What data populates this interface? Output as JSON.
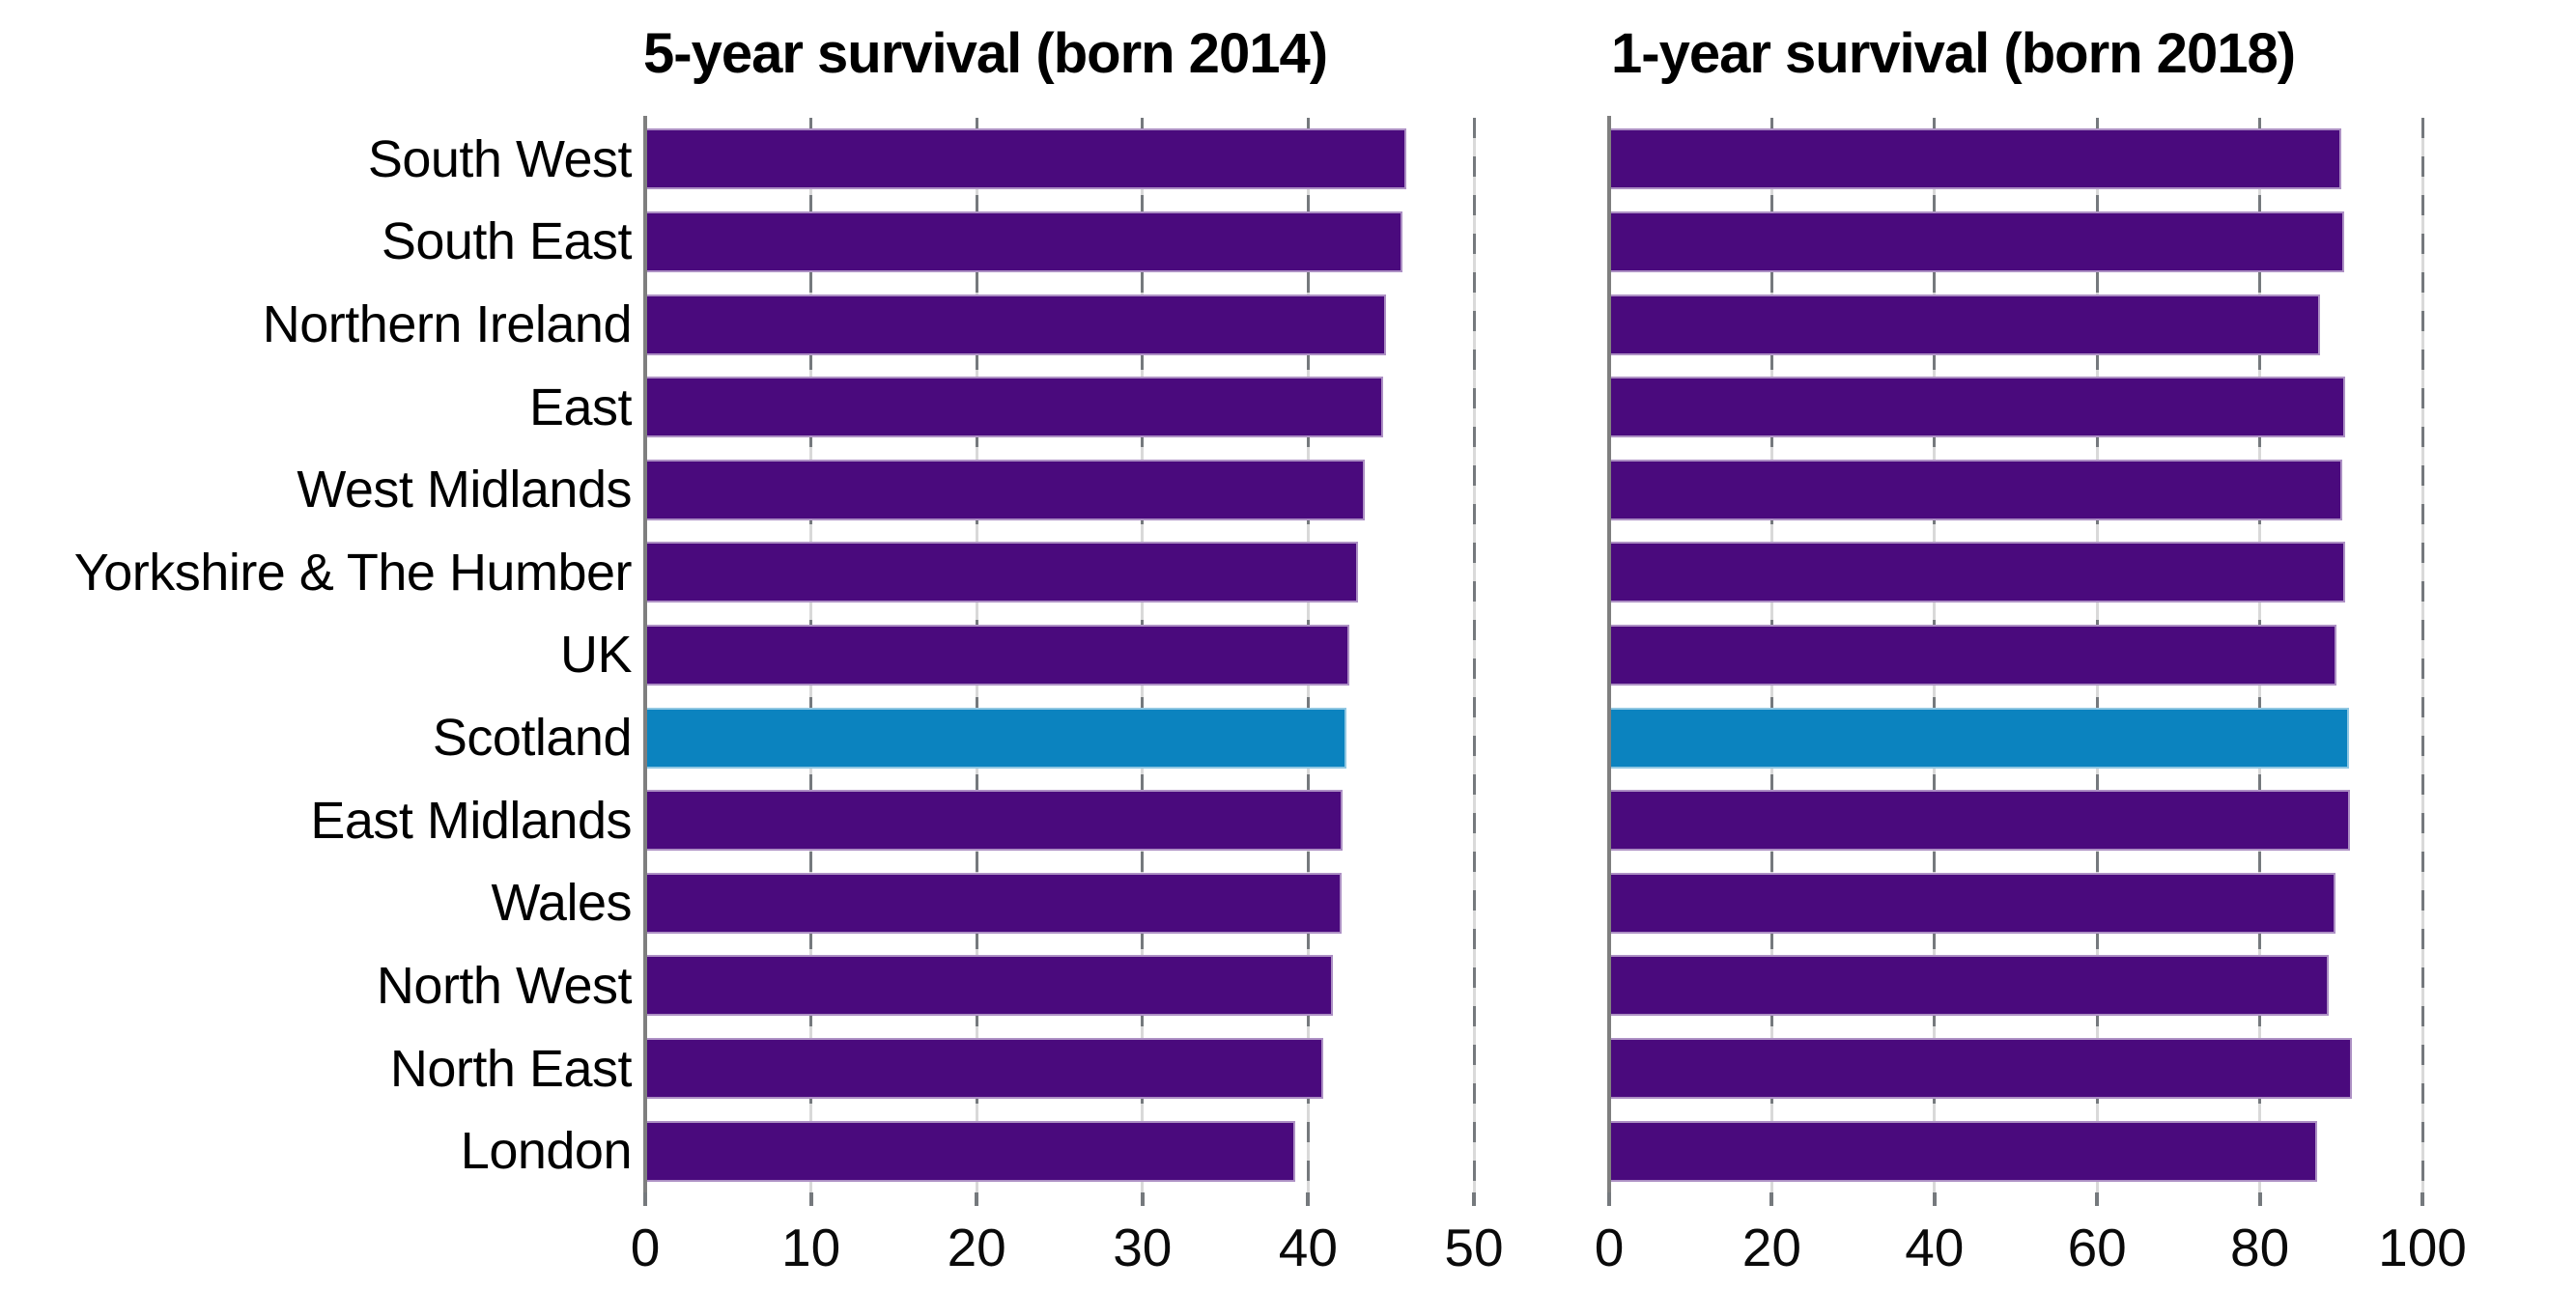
{
  "chart_data": {
    "type": "bar",
    "orientation": "horizontal",
    "categories": [
      "South West",
      "South East",
      "Northern Ireland",
      "East",
      "West Midlands",
      "Yorkshire & The Humber",
      "UK",
      "Scotland",
      "East Midlands",
      "Wales",
      "North West",
      "North East",
      "London"
    ],
    "highlight_category": "Scotland",
    "charts": [
      {
        "title": "5-year survival (born 2014)",
        "xlim": [
          0,
          50
        ],
        "xticks": [
          0,
          10,
          20,
          30,
          40,
          50
        ],
        "values": [
          45.9,
          45.7,
          44.7,
          44.5,
          43.4,
          43.0,
          42.5,
          42.3,
          42.1,
          42.0,
          41.5,
          40.9,
          39.2
        ]
      },
      {
        "title": "1-year survival (born 2018)",
        "xlim": [
          0,
          100
        ],
        "xticks": [
          0,
          20,
          40,
          60,
          80,
          100
        ],
        "values": [
          90.0,
          90.4,
          87.4,
          90.5,
          90.2,
          90.5,
          89.4,
          91.0,
          91.1,
          89.3,
          88.5,
          91.3,
          87.1
        ]
      }
    ],
    "colors": {
      "bar": "#4a0a7d",
      "bar_highlight": "#0b83bf",
      "grid_dash_dark": "#75797d",
      "grid_light": "#d9d9d9",
      "axis": "#7f7f7f",
      "text": "#000000",
      "background": "#ffffff"
    },
    "grid": "dashed-vertical-behind-bars",
    "legend": "none"
  }
}
